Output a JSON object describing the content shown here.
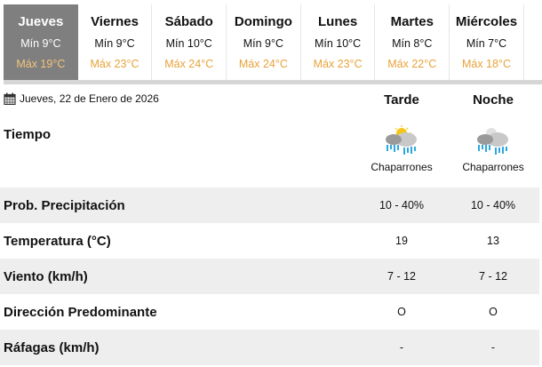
{
  "days": [
    {
      "name": "Jueves",
      "min": "Mín 9°C",
      "max": "Máx 19°C",
      "selected": true
    },
    {
      "name": "Viernes",
      "min": "Mín 9°C",
      "max": "Máx 23°C"
    },
    {
      "name": "Sábado",
      "min": "Mín 10°C",
      "max": "Máx 24°C"
    },
    {
      "name": "Domingo",
      "min": "Mín 9°C",
      "max": "Máx 24°C"
    },
    {
      "name": "Lunes",
      "min": "Mín 10°C",
      "max": "Máx 23°C"
    },
    {
      "name": "Martes",
      "min": "Mín 8°C",
      "max": "Máx 22°C"
    },
    {
      "name": "Miércoles",
      "min": "Mín 7°C",
      "max": "Máx 18°C"
    }
  ],
  "date": "Jueves, 22 de Enero de 2026",
  "columns": [
    "Tarde",
    "Noche"
  ],
  "weather": {
    "label": "Tiempo",
    "tarde": {
      "icon": "sun-cloud-rain-icon",
      "text": "Chaparrones"
    },
    "noche": {
      "icon": "moon-cloud-rain-icon",
      "text": "Chaparrones"
    }
  },
  "rows": [
    {
      "label": "Prob. Precipitación",
      "tarde": "10 - 40%",
      "noche": "10 - 40%"
    },
    {
      "label": "Temperatura (°C)",
      "tarde": "19",
      "noche": "13"
    },
    {
      "label": "Viento (km/h)",
      "tarde": "7 - 12",
      "noche": "7 - 12"
    },
    {
      "label": "Dirección Predominante",
      "tarde": "O",
      "noche": "O"
    },
    {
      "label": "Ráfagas (km/h)",
      "tarde": "-",
      "noche": "-"
    }
  ],
  "colors": {
    "max_temp": "#e8a23a",
    "selected_tab": "#7f7f7f",
    "row_alt": "#eeeeee"
  }
}
